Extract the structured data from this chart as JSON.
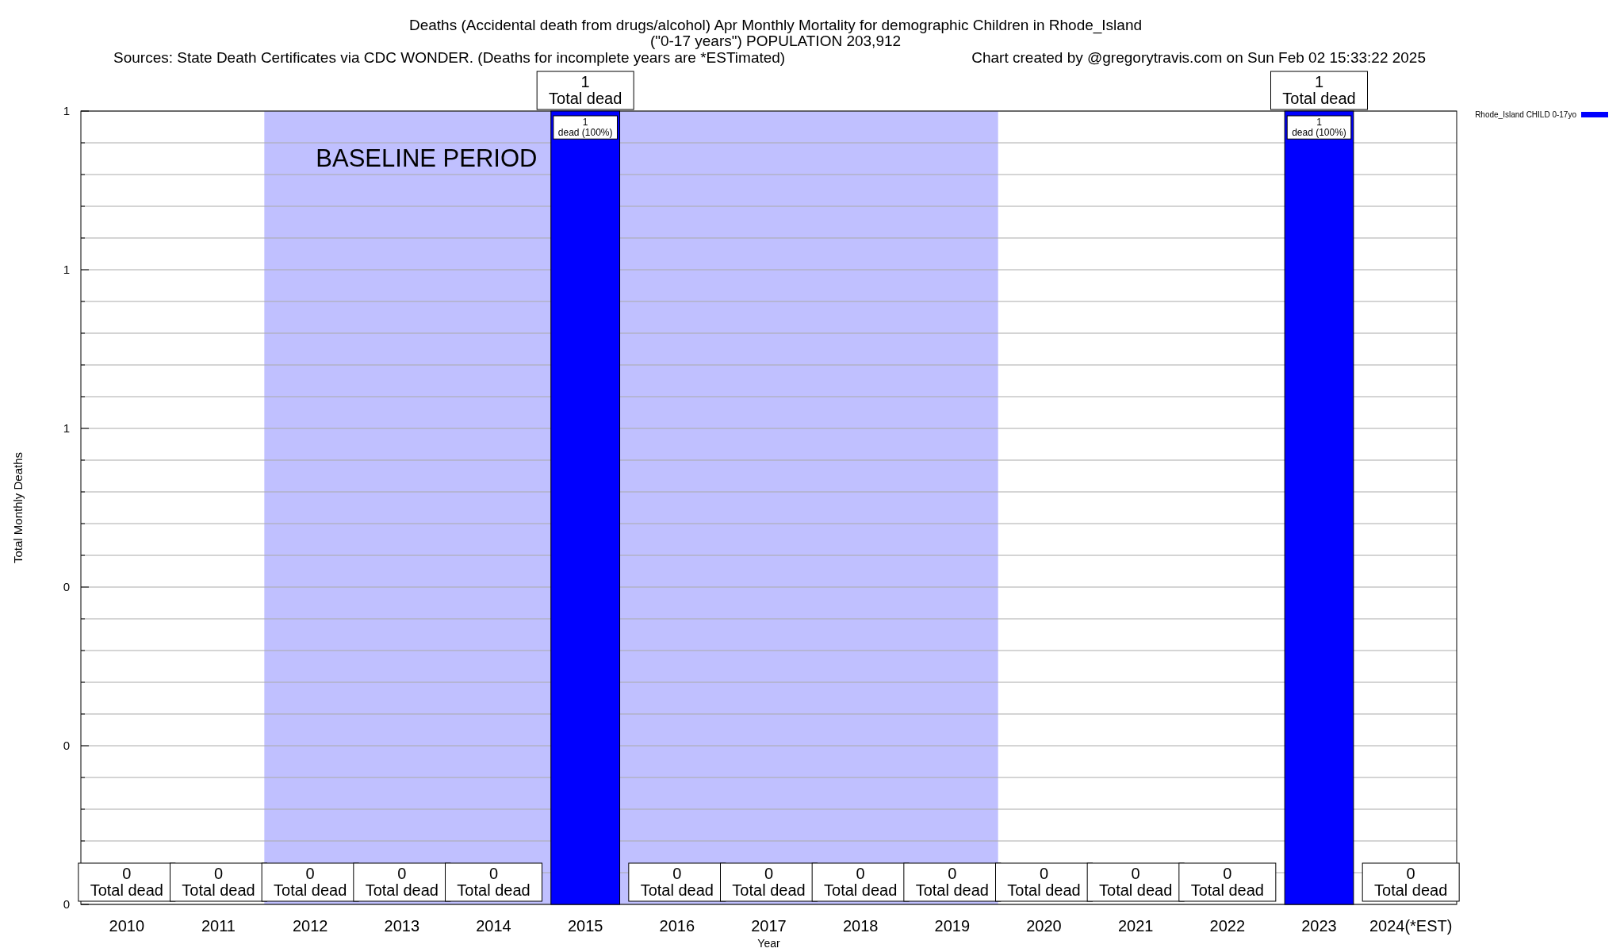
{
  "chart_data": {
    "type": "bar",
    "title": "Deaths (Accidental death from drugs/alcohol) Apr Monthly Mortality for demographic Children in Rhode_Island",
    "subtitle": "(\"0-17 years\") POPULATION 203,912",
    "xlabel": "Year",
    "ylabel": "Total Monthly Deaths",
    "annotations": [
      "Sources: State Death Certificates via CDC WONDER. (Deaths for incomplete years are *ESTimated)",
      "Chart created by @gregorytravis.com on Sun Feb 02 15:33:22 2025",
      {
        "text": "1\ndead (100%)",
        "x": "2015",
        "y": 1
      },
      {
        "text": "1\ndead (100%)",
        "x": "2023",
        "y": 1
      }
    ],
    "categories": [
      "2010",
      "2011",
      "2012",
      "2013",
      "2014",
      "2015",
      "2016",
      "2017",
      "2018",
      "2019",
      "2020",
      "2021",
      "2022",
      "2023",
      "2024(*EST)"
    ],
    "series": [
      {
        "name": "Rhode_Island CHILD 0-17yo",
        "color": "#0000ff",
        "values": [
          0,
          0,
          0,
          0,
          0,
          1,
          0,
          0,
          0,
          0,
          0,
          0,
          0,
          1,
          0
        ],
        "value_labels": [
          "0\nTotal dead",
          "0\nTotal dead",
          "0\nTotal dead",
          "0\nTotal dead",
          "0\nTotal dead",
          "1\nTotal dead",
          "0\nTotal dead",
          "0\nTotal dead",
          "0\nTotal dead",
          "0\nTotal dead",
          "0\nTotal dead",
          "0\nTotal dead",
          "0\nTotal dead",
          "1\nTotal dead",
          "0\nTotal dead"
        ]
      }
    ],
    "ylim": [
      0,
      1
    ],
    "yticks": [
      {
        "value": 0,
        "label": "0"
      },
      {
        "value": 0.04,
        "label": null
      },
      {
        "value": 0.08,
        "label": null
      },
      {
        "value": 0.12,
        "label": null
      },
      {
        "value": 0.16,
        "label": null
      },
      {
        "value": 0.2,
        "label": "0"
      },
      {
        "value": 0.24,
        "label": null
      },
      {
        "value": 0.28,
        "label": null
      },
      {
        "value": 0.32,
        "label": null
      },
      {
        "value": 0.36,
        "label": null
      },
      {
        "value": 0.4,
        "label": "0"
      },
      {
        "value": 0.44,
        "label": null
      },
      {
        "value": 0.48,
        "label": null
      },
      {
        "value": 0.52,
        "label": null
      },
      {
        "value": 0.56,
        "label": null
      },
      {
        "value": 0.6,
        "label": "1"
      },
      {
        "value": 0.64,
        "label": null
      },
      {
        "value": 0.68,
        "label": null
      },
      {
        "value": 0.72,
        "label": null
      },
      {
        "value": 0.76,
        "label": null
      },
      {
        "value": 0.8,
        "label": "1"
      },
      {
        "value": 0.84,
        "label": null
      },
      {
        "value": 0.88,
        "label": null
      },
      {
        "value": 0.92,
        "label": null
      },
      {
        "value": 0.96,
        "label": null
      },
      {
        "value": 1,
        "label": "1"
      }
    ],
    "bands": [
      {
        "axis": "x",
        "from": "2012",
        "to": "2019",
        "label": "BASELINE PERIOD",
        "color": "#c0c0ff"
      }
    ],
    "grid": "y",
    "legend": "top right"
  }
}
